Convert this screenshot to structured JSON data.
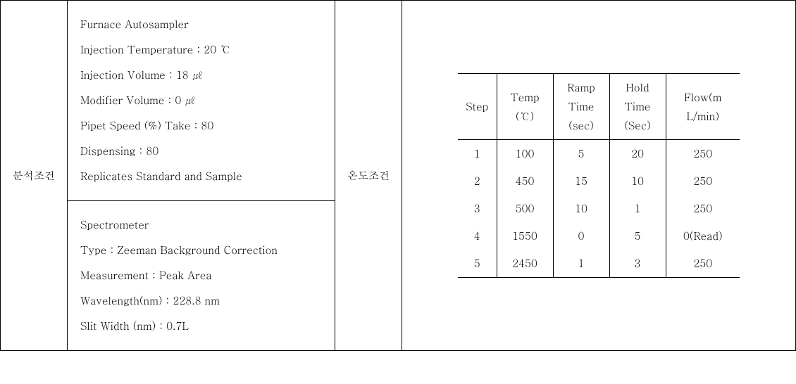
{
  "outer": {
    "label_left": "분석조건",
    "label_right": "온도조건"
  },
  "furnace": {
    "line1": "Furnace Autosampler",
    "line2": "Injection Temperature : 20 ℃",
    "line3": "Injection Volume : 18 ㎕",
    "line4": "Modifier Volume :  0  ㎕",
    "line5": "Pipet Speed (%) Take : 80",
    "line6": "Dispensing : 80",
    "line7": "Replicates Standard and Sample"
  },
  "spectrometer": {
    "line1": "Spectrometer",
    "line2": "Type : Zeeman Background Correction",
    "line3": "Measurement : Peak Area",
    "line4": "Wavelength(nm) : 228.8 nm",
    "line5": "Slit Width (nm) : 0.7L"
  },
  "temp_table": {
    "headers": {
      "step": "Step",
      "temp_l1": "Temp",
      "temp_l2": "(℃)",
      "ramp_l1": "Ramp",
      "ramp_l2": "Time",
      "ramp_l3": "(sec)",
      "hold_l1": "Hold",
      "hold_l2": "Time",
      "hold_l3": "(Sec)",
      "flow_l1": "Flow(m",
      "flow_l2": "L/min)"
    },
    "rows": [
      {
        "step": "1",
        "temp": "100",
        "ramp": "5",
        "hold": "20",
        "flow": "250"
      },
      {
        "step": "2",
        "temp": "450",
        "ramp": "15",
        "hold": "10",
        "flow": "250"
      },
      {
        "step": "3",
        "temp": "500",
        "ramp": "10",
        "hold": "1",
        "flow": "250"
      },
      {
        "step": "4",
        "temp": "1550",
        "ramp": "0",
        "hold": "5",
        "flow": "0(Read)"
      },
      {
        "step": "5",
        "temp": "2450",
        "ramp": "1",
        "hold": "3",
        "flow": "250"
      }
    ]
  }
}
